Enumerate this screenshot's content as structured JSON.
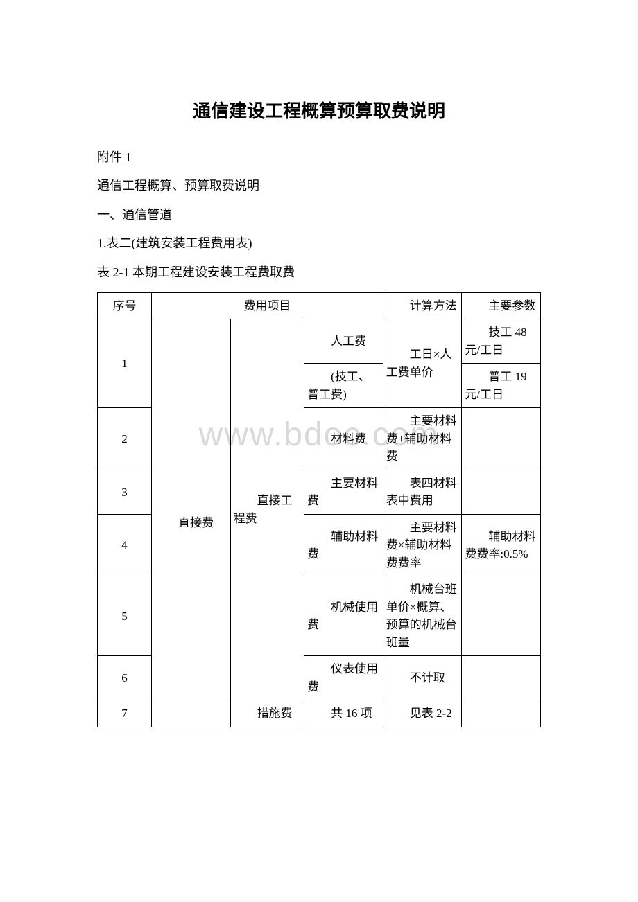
{
  "watermark": "www.bdoc.com",
  "title": "通信建设工程概算预算取费说明",
  "paragraphs": {
    "p1": "附件 1",
    "p2": "通信工程概算、预算取费说明",
    "p3": "一、通信管道",
    "p4": "1.表二(建筑安装工程费用表)",
    "p5": "表 2-1 本期工程建设安装工程费取费"
  },
  "table": {
    "header": {
      "seq": "序号",
      "item": "费用项目",
      "calc": "计算方法",
      "param": "主要参数"
    },
    "rows": {
      "r1_seq": "1",
      "r1_item": "直接费",
      "r1_sub1": "直接工程费",
      "r1_sub2a": "人工费",
      "r1_sub2b": "(技工、普工费)",
      "r1_calc": "工日×人工费单价",
      "r1_param_a": "技工 48 元/工日",
      "r1_param_b": "普工 19 元/工日",
      "r2_seq": "2",
      "r2_sub2": "材料费",
      "r2_calc": "主要材料费+辅助材料费",
      "r3_seq": "3",
      "r3_sub2": "主要材料费",
      "r3_calc": "表四材料表中费用",
      "r4_seq": "4",
      "r4_sub2": "辅助材料费",
      "r4_calc": "主要材料费×辅助材料费费率",
      "r4_param": "辅助材料费费率:0.5%",
      "r5_seq": "5",
      "r5_sub2": "机械使用费",
      "r5_calc": "机械台班单价×概算、预算的机械台班量",
      "r6_seq": "6",
      "r6_sub2": "仪表使用费",
      "r6_calc": "不计取",
      "r7_seq": "7",
      "r7_sub1": "措施费",
      "r7_sub2": "共 16 项",
      "r7_calc": "见表 2-2"
    }
  }
}
